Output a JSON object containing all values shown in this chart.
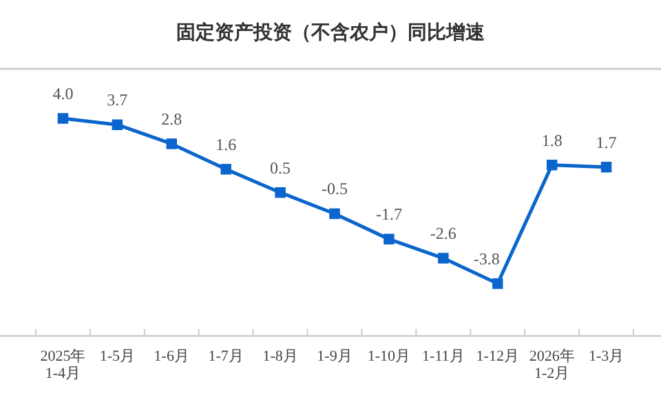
{
  "chart_data": {
    "type": "line",
    "title": "固定资产投资（不含农户）同比增速",
    "categories": [
      "2025年\n1-4月",
      "1-5月",
      "1-6月",
      "1-7月",
      "1-8月",
      "1-9月",
      "1-10月",
      "1-11月",
      "1-12月",
      "2026年\n1-2月",
      "1-3月"
    ],
    "series": [
      {
        "color": "#0a66cc",
        "values": [
          4.0,
          3.7,
          2.8,
          1.6,
          0.5,
          -0.5,
          -1.7,
          -2.6,
          -3.8,
          1.8,
          1.7
        ],
        "value_labels": [
          "4.0",
          "3.7",
          "2.8",
          "1.6",
          "0.5",
          "-0.5",
          "-1.7",
          "-2.6",
          "-3.8",
          "1.8",
          "1.7"
        ]
      }
    ],
    "marker": "square"
  }
}
